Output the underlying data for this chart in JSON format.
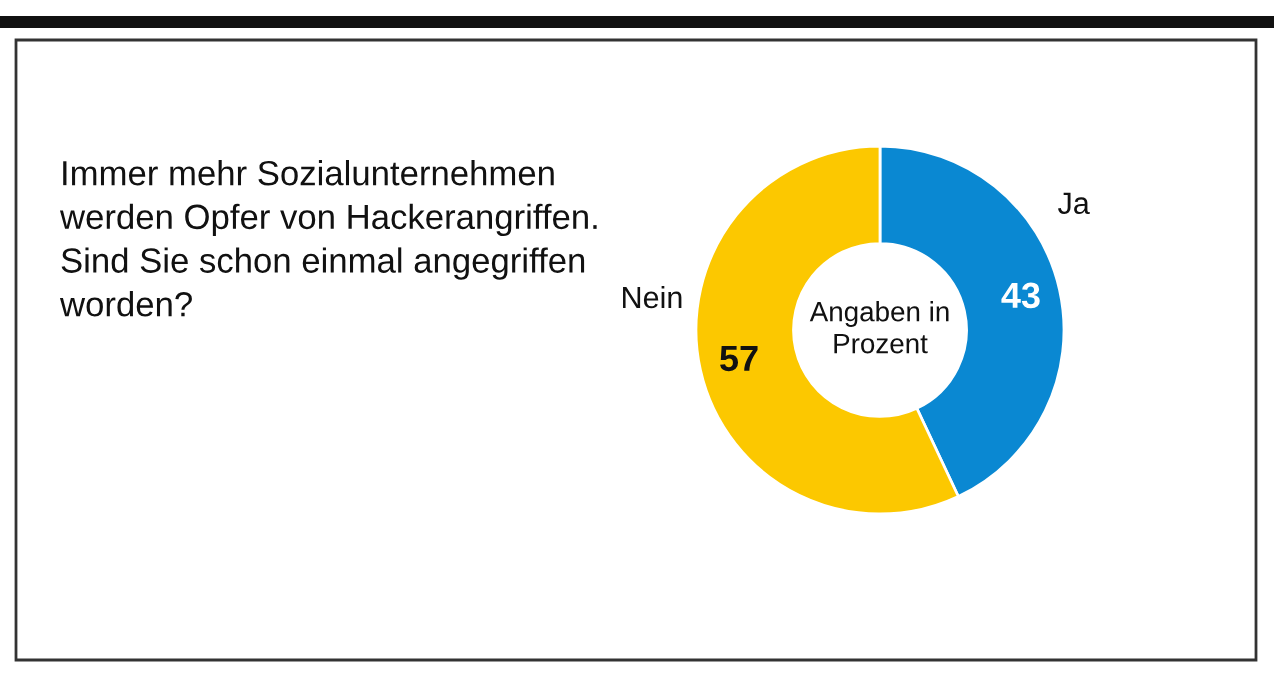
{
  "chart_data": {
    "type": "donut",
    "title": "Immer mehr Sozialunternehmen\nwerden Opfer von Hackerangriffen.\nSind Sie schon einmal angegriffen\nworden?",
    "categories": [
      "Ja",
      "Nein"
    ],
    "values": [
      43,
      57
    ],
    "colors": [
      "#0a88d2",
      "#fcc800"
    ],
    "data_labels": true,
    "annotations": [
      "Angaben in\nProzent"
    ]
  }
}
